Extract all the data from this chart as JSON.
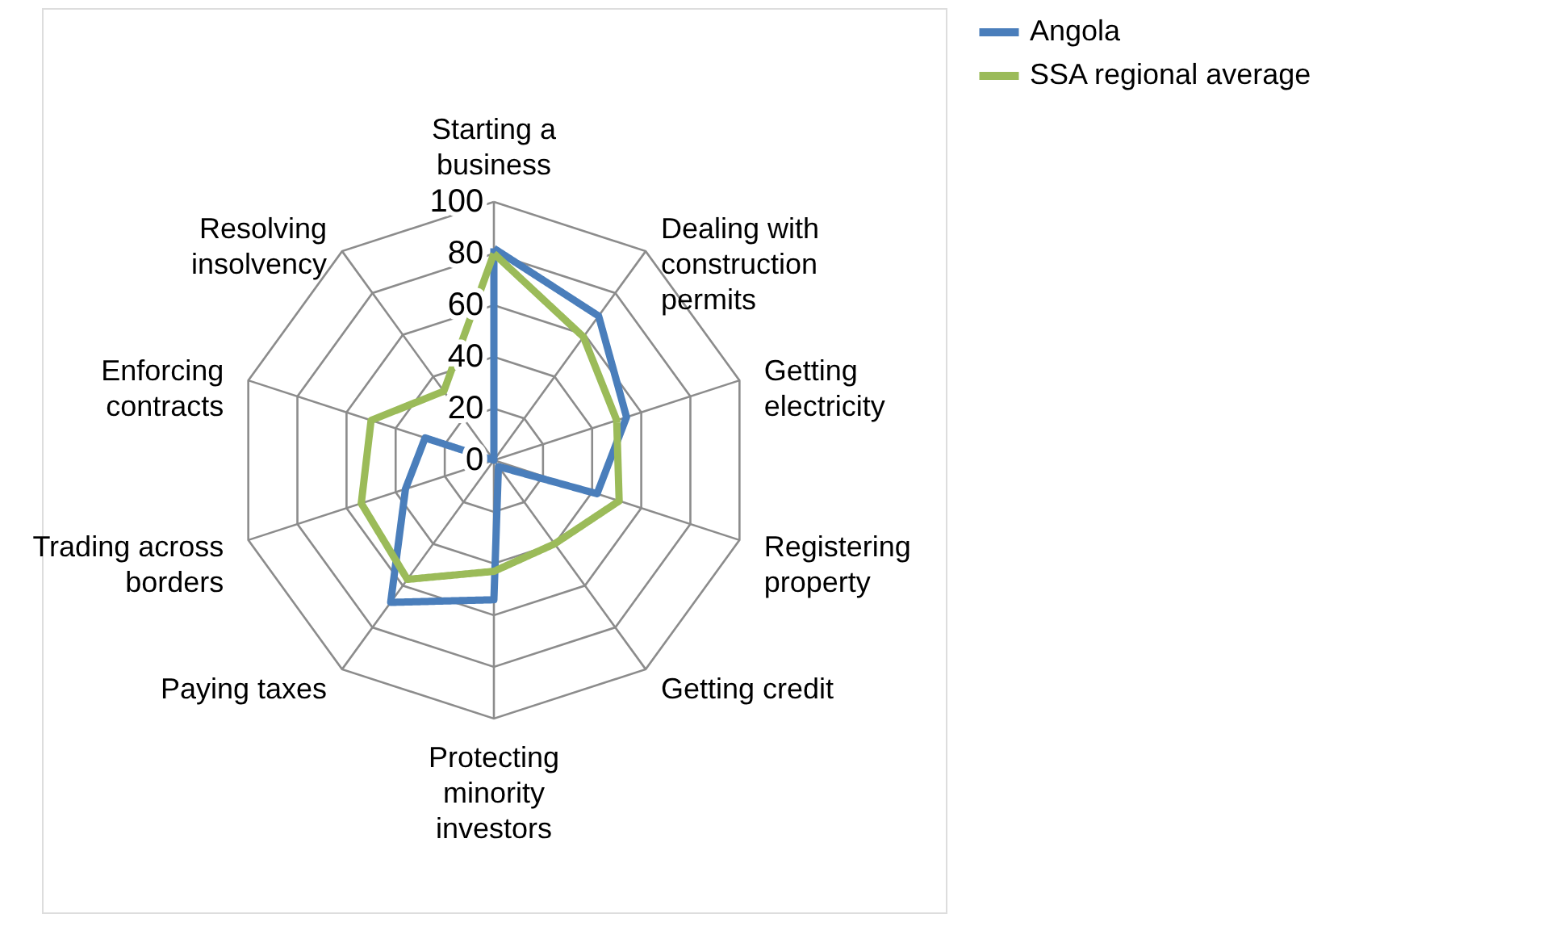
{
  "chart_data": {
    "type": "radar",
    "categories": [
      "Starting a business",
      "Dealing with construction permits",
      "Getting electricity",
      "Registering property",
      "Getting credit",
      "Protecting minority investors",
      "Paying taxes",
      "Trading across borders",
      "Enforcing contracts",
      "Resolving insolvency"
    ],
    "series": [
      {
        "name": "Angola",
        "color": "#4a7ebb",
        "values": [
          82,
          69,
          54,
          42,
          3,
          54,
          68,
          36,
          28,
          0
        ]
      },
      {
        "name": "SSA regional average",
        "color": "#9bbb59",
        "values": [
          80,
          59,
          50,
          51,
          40,
          43,
          57,
          54,
          50,
          33
        ]
      }
    ],
    "ylim": [
      0,
      100
    ],
    "yticks": [
      0,
      20,
      40,
      60,
      80,
      100
    ],
    "grid": true,
    "legend": "right",
    "line_style": "solid",
    "marker": "none"
  }
}
